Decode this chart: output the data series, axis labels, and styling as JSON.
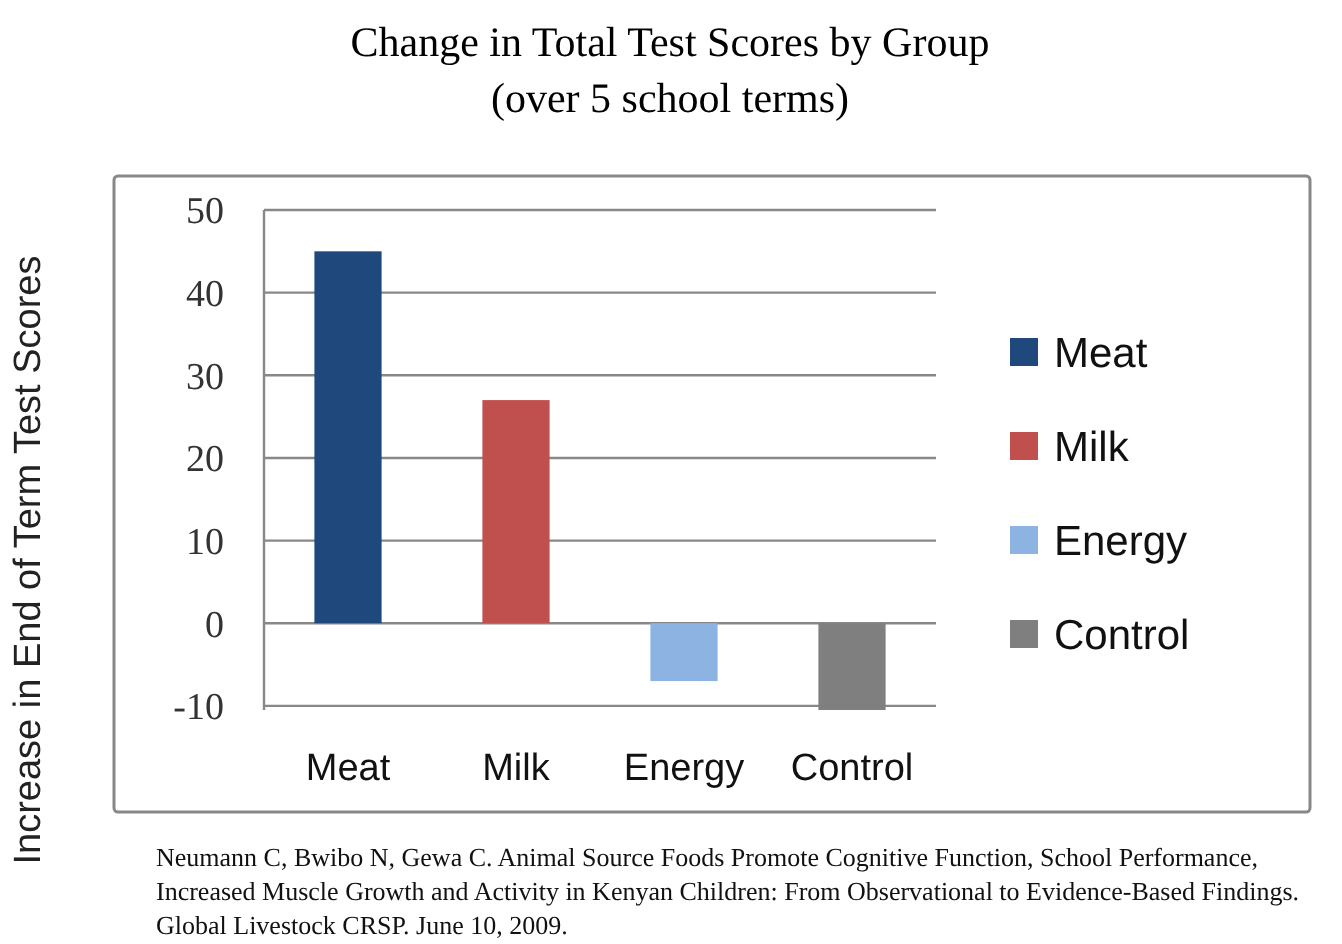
{
  "chart_data": {
    "type": "bar",
    "title": "Change in Total Test Scores by Group",
    "subtitle": "(over 5 school terms)",
    "ylabel": "Increase in End of Term Test Scores",
    "categories": [
      "Meat",
      "Milk",
      "Energy",
      "Control"
    ],
    "series": [
      {
        "name": "Meat",
        "color": "#1f497d",
        "values": [
          45,
          null,
          null,
          null
        ]
      },
      {
        "name": "Milk",
        "color": "#c0504d",
        "values": [
          null,
          27,
          null,
          null
        ]
      },
      {
        "name": "Energy",
        "color": "#8db3e2",
        "values": [
          null,
          null,
          -7,
          null
        ]
      },
      {
        "name": "Control",
        "color": "#7f7f7f",
        "values": [
          null,
          null,
          null,
          -10.5
        ]
      }
    ],
    "ylim": [
      -10.5,
      50
    ],
    "yticks": [
      -10,
      0,
      10,
      20,
      30,
      40,
      50
    ],
    "grid": "y",
    "legend": "right",
    "annotations": [
      "Neumann C, Bwibo N, Gewa C. Animal Source Foods Promote Cognitive Function, School Performance, Increased Muscle Growth and Activity in Kenyan Children: From Observational to Evidence-Based Findings. Global Livestock CRSP. June 10, 2009."
    ]
  }
}
